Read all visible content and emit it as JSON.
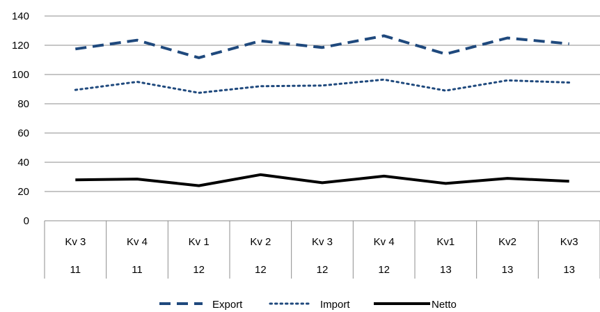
{
  "chart_data": {
    "type": "line",
    "title": "",
    "xlabel": "",
    "ylabel": "",
    "ylim": [
      0,
      140
    ],
    "yticks": [
      0,
      20,
      40,
      60,
      80,
      100,
      120,
      140
    ],
    "grid": true,
    "legend_position": "bottom",
    "categories": [
      {
        "quarter": "Kv 3",
        "year": "11"
      },
      {
        "quarter": "Kv 4",
        "year": "11"
      },
      {
        "quarter": "Kv 1",
        "year": "12"
      },
      {
        "quarter": "Kv 2",
        "year": "12"
      },
      {
        "quarter": "Kv 3",
        "year": "12"
      },
      {
        "quarter": "Kv 4",
        "year": "12"
      },
      {
        "quarter": "Kv1",
        "year": "13"
      },
      {
        "quarter": "Kv2",
        "year": "13"
      },
      {
        "quarter": "Kv3",
        "year": "13"
      }
    ],
    "series": [
      {
        "name": "Export",
        "color": "#1F497D",
        "style": "dashed",
        "values": [
          117.5,
          123.5,
          111.5,
          123.0,
          118.5,
          126.5,
          114.0,
          125.0,
          121.0
        ]
      },
      {
        "name": "Import",
        "color": "#1F497D",
        "style": "dotted",
        "values": [
          89.5,
          95.0,
          87.5,
          92.0,
          92.5,
          96.5,
          89.0,
          96.0,
          94.5
        ]
      },
      {
        "name": "Netto",
        "color": "#000000",
        "style": "solid",
        "values": [
          28.0,
          28.5,
          24.0,
          31.5,
          26.0,
          30.5,
          25.5,
          29.0,
          27.0
        ]
      }
    ]
  }
}
